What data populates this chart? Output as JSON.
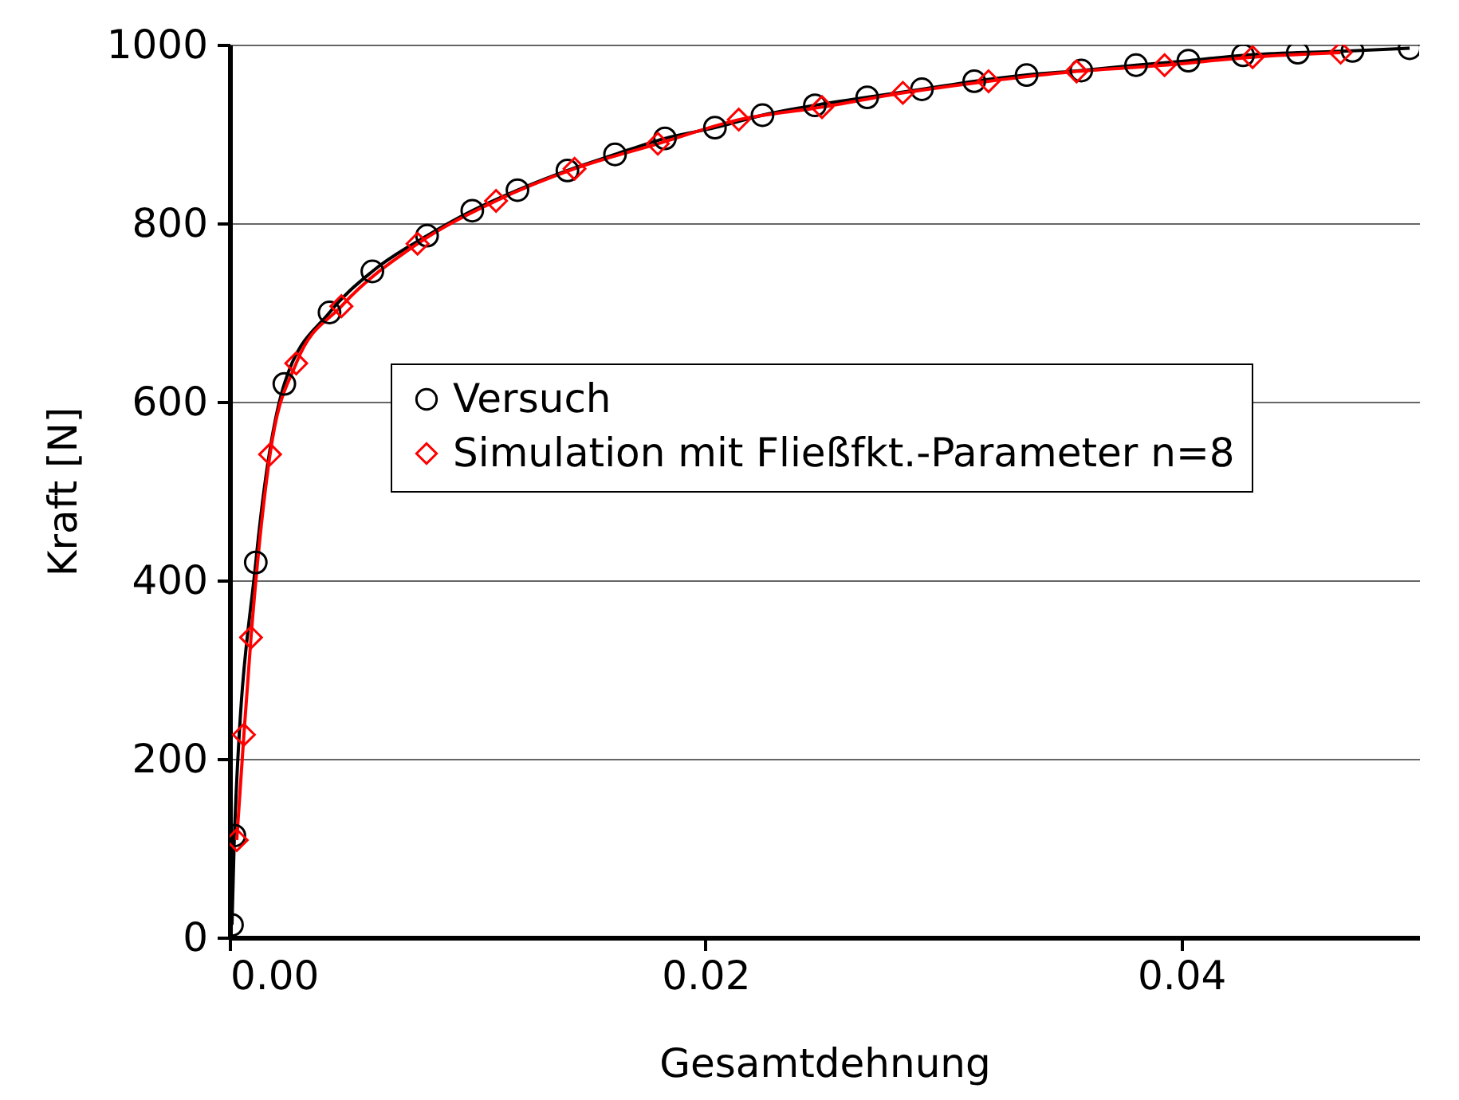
{
  "chart_data": {
    "type": "line",
    "xlabel": "Gesamtdehnung",
    "ylabel": "Kraft [N]",
    "xlim": [
      0,
      0.05
    ],
    "xticks": [
      {
        "value": 0,
        "label": "0.00"
      },
      {
        "value": 0.02,
        "label": "0.02"
      },
      {
        "value": 0.04,
        "label": "0.04"
      }
    ],
    "ylim": [
      0,
      1000
    ],
    "yticks": [
      0,
      200,
      400,
      600,
      800,
      1000
    ],
    "grid": "y",
    "legend": "right",
    "series": [
      {
        "name": "Versuch",
        "color": "#000000",
        "marker": "circle",
        "x": [
          0.0001,
          0.0002,
          0.0011,
          0.0023,
          0.0042,
          0.006,
          0.0083,
          0.0102,
          0.0121,
          0.0142,
          0.0162,
          0.0183,
          0.0204,
          0.0224,
          0.0246,
          0.0268,
          0.0291,
          0.0313,
          0.0335,
          0.0358,
          0.0381,
          0.0403,
          0.0426,
          0.0449,
          0.0472,
          0.0496
        ],
        "values": [
          14,
          114,
          420,
          620,
          700,
          746,
          786,
          814,
          837,
          859,
          877,
          895,
          907,
          921,
          932,
          941,
          950,
          959,
          966,
          971,
          977,
          982,
          988,
          991,
          993,
          996
        ]
      },
      {
        "name": "Simulation mit Fließfkt.-Parameter n=8",
        "color": "#ff0000",
        "marker": "diamond",
        "x": [
          0.0003,
          0.0006,
          0.0009,
          0.0017,
          0.0028,
          0.0047,
          0.0079,
          0.0112,
          0.0145,
          0.018,
          0.0214,
          0.0249,
          0.0283,
          0.0319,
          0.0356,
          0.0393,
          0.043,
          0.0467
        ],
        "values": [
          109,
          227,
          336,
          541,
          643,
          707,
          777,
          825,
          861,
          889,
          916,
          930,
          946,
          959,
          970,
          977,
          986,
          991
        ]
      }
    ]
  }
}
